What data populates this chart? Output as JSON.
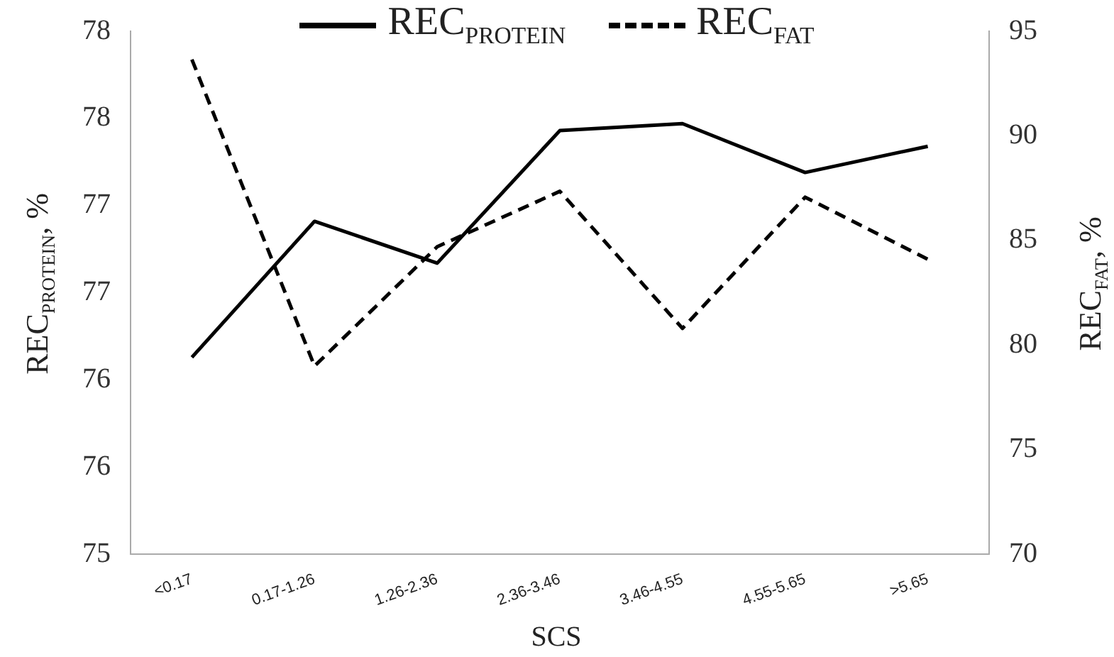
{
  "chart_data": {
    "type": "line",
    "xlabel": "SCS",
    "ylabel": "REC$_{PROTEIN}$, %",
    "y2label": "REC$_{FAT}$, %",
    "categories": [
      "<0.17",
      "0.17-1.26",
      "1.26-2.36",
      "2.36-3.46",
      "3.46-4.55",
      "4.55-5.65",
      ">5.65"
    ],
    "series": [
      {
        "name": "REC$_{PROTEIN}$",
        "color": "#000000",
        "line_style": "solid",
        "values": [
          76.13,
          76.91,
          76.67,
          77.43,
          77.47,
          77.19,
          77.34
        ]
      },
      {
        "name": "REC$_{FAT}$",
        "color": "#000000",
        "line_style": "dashed",
        "axis": "y2",
        "values": [
          93.65,
          79.0,
          84.7,
          87.35,
          80.8,
          87.07,
          84.1
        ]
      }
    ],
    "ylim": [
      75,
      78
    ],
    "yticks": [
      75,
      {
        "value": 75.5,
        "label": "76"
      },
      76,
      {
        "value": 76.5,
        "label": "77"
      },
      77,
      {
        "value": 77.5,
        "label": "78"
      },
      78
    ],
    "y2lim": [
      70,
      95
    ],
    "y2ticks": [
      70,
      75,
      80,
      85,
      90,
      95
    ],
    "grid": false,
    "legend": "top",
    "marker": "none"
  }
}
